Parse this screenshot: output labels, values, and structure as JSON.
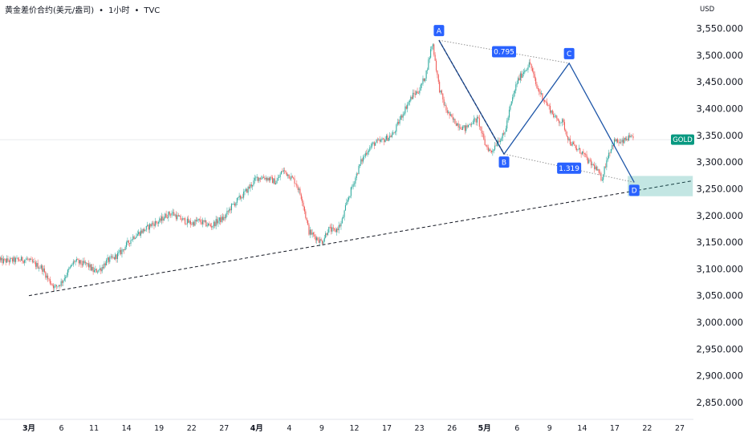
{
  "header": {
    "symbol_name": "黄金差价合约(美元/盎司)",
    "timeframe": "1小时",
    "source": "TVC"
  },
  "axis": {
    "currency": "USD",
    "symbol_badge": "GOLD"
  },
  "chart_data": {
    "type": "candlestick",
    "title": "黄金差价合约(美元/盎司)",
    "ylim": [
      2820,
      3580
    ],
    "y_ticks": [
      "3,550.000",
      "3,500.000",
      "3,450.000",
      "3,400.000",
      "3,350.000",
      "3,300.000",
      "3,250.000",
      "3,200.000",
      "3,150.000",
      "3,100.000",
      "3,050.000",
      "3,000.000",
      "2,950.000",
      "2,900.000",
      "2,850.000"
    ],
    "y_tick_values": [
      3550,
      3500,
      3450,
      3400,
      3350,
      3300,
      3250,
      3200,
      3150,
      3100,
      3050,
      3000,
      2950,
      2900,
      2850
    ],
    "x_ticks": [
      "3月",
      "6",
      "11",
      "14",
      "19",
      "22",
      "27",
      "4月",
      "4",
      "9",
      "12",
      "17",
      "23",
      "26",
      "5月",
      "6",
      "9",
      "14",
      "17",
      "22",
      "27"
    ],
    "x_tick_days": [
      0,
      5,
      10,
      15,
      20,
      25,
      30,
      35,
      40,
      45,
      50,
      55,
      60,
      65,
      70,
      75,
      80,
      85,
      90,
      95,
      100
    ],
    "current_price": 3342,
    "price_path": [
      [
        0,
        3115
      ],
      [
        1,
        3108
      ],
      [
        2,
        3102
      ],
      [
        3,
        3080
      ],
      [
        4,
        3065
      ],
      [
        5,
        3075
      ],
      [
        6,
        3095
      ],
      [
        7,
        3115
      ],
      [
        8,
        3110
      ],
      [
        9,
        3108
      ],
      [
        10,
        3095
      ],
      [
        11,
        3100
      ],
      [
        12,
        3115
      ],
      [
        13,
        3120
      ],
      [
        14,
        3130
      ],
      [
        15,
        3145
      ],
      [
        16,
        3160
      ],
      [
        17,
        3168
      ],
      [
        18,
        3175
      ],
      [
        19,
        3185
      ],
      [
        20,
        3188
      ],
      [
        21,
        3200
      ],
      [
        22,
        3205
      ],
      [
        23,
        3195
      ],
      [
        24,
        3190
      ],
      [
        25,
        3185
      ],
      [
        26,
        3190
      ],
      [
        27,
        3185
      ],
      [
        28,
        3180
      ],
      [
        29,
        3190
      ],
      [
        30,
        3195
      ],
      [
        31,
        3215
      ],
      [
        32,
        3228
      ],
      [
        33,
        3240
      ],
      [
        34,
        3255
      ],
      [
        35,
        3270
      ],
      [
        36,
        3272
      ],
      [
        37,
        3268
      ],
      [
        38,
        3262
      ],
      [
        39,
        3285
      ],
      [
        40,
        3275
      ],
      [
        41,
        3262
      ],
      [
        42,
        3230
      ],
      [
        43,
        3170
      ],
      [
        44,
        3160
      ],
      [
        45,
        3150
      ],
      [
        46,
        3175
      ],
      [
        47,
        3170
      ],
      [
        48,
        3185
      ],
      [
        49,
        3230
      ],
      [
        50,
        3265
      ],
      [
        51,
        3300
      ],
      [
        52,
        3322
      ],
      [
        53,
        3335
      ],
      [
        54,
        3338
      ],
      [
        55,
        3345
      ],
      [
        56,
        3352
      ],
      [
        57,
        3380
      ],
      [
        58,
        3405
      ],
      [
        59,
        3425
      ],
      [
        60,
        3435
      ],
      [
        61,
        3465
      ],
      [
        62,
        3525
      ],
      [
        63,
        3440
      ],
      [
        64,
        3400
      ],
      [
        65,
        3380
      ],
      [
        66,
        3370
      ],
      [
        67,
        3362
      ],
      [
        68,
        3375
      ],
      [
        69,
        3380
      ],
      [
        70,
        3335
      ],
      [
        71,
        3318
      ],
      [
        72,
        3340
      ],
      [
        73,
        3350
      ],
      [
        74,
        3405
      ],
      [
        75,
        3450
      ],
      [
        76,
        3470
      ],
      [
        77,
        3485
      ],
      [
        78,
        3440
      ],
      [
        79,
        3420
      ],
      [
        80,
        3400
      ],
      [
        81,
        3380
      ],
      [
        82,
        3375
      ],
      [
        83,
        3340
      ],
      [
        84,
        3325
      ],
      [
        85,
        3318
      ],
      [
        86,
        3300
      ],
      [
        87,
        3290
      ],
      [
        88,
        3268
      ],
      [
        89,
        3315
      ],
      [
        90,
        3340
      ],
      [
        91,
        3335
      ],
      [
        92,
        3345
      ],
      [
        93,
        3342
      ]
    ],
    "harmonic_pattern": {
      "points": [
        {
          "label": "A",
          "day": 63,
          "price": 3528
        },
        {
          "label": "B",
          "day": 73,
          "price": 3315
        },
        {
          "label": "C",
          "day": 83,
          "price": 3485
        },
        {
          "label": "D",
          "day": 93,
          "price": 3262
        }
      ],
      "ratios": [
        {
          "label": "0.795",
          "between": [
            "A",
            "C"
          ]
        },
        {
          "label": "1.319",
          "between": [
            "B",
            "D"
          ]
        }
      ]
    },
    "trendline": {
      "from": {
        "day": 0,
        "price": 3050
      },
      "to": {
        "day": 102,
        "price": 3265
      }
    },
    "zone": {
      "from_day": 92,
      "to_day": 102,
      "low": 3236,
      "high": 3274
    }
  }
}
